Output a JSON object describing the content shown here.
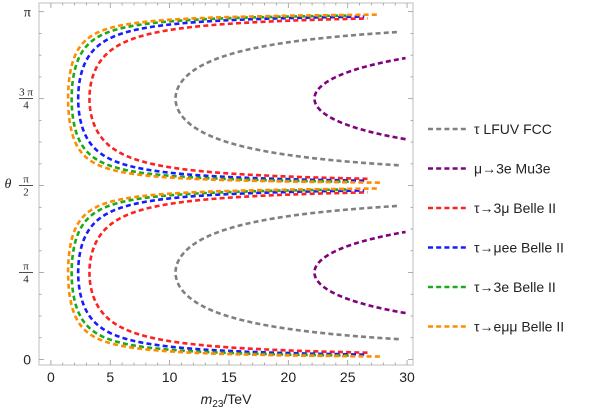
{
  "chart_data": {
    "type": "line",
    "xlabel": "m23/TeV",
    "ylabel": "θ",
    "xlim": [
      -1,
      30.5
    ],
    "ylim": [
      -0.05,
      3.22
    ],
    "x_ticks": [
      {
        "value": 0,
        "label": "0"
      },
      {
        "value": 5,
        "label": "5"
      },
      {
        "value": 10,
        "label": "10"
      },
      {
        "value": 15,
        "label": "15"
      },
      {
        "value": 20,
        "label": "20"
      },
      {
        "value": 25,
        "label": "25"
      },
      {
        "value": 30,
        "label": "30"
      }
    ],
    "y_ticks": [
      {
        "value": 0,
        "label": "0"
      },
      {
        "value": 0.7854,
        "numerator": "π",
        "denominator": "4"
      },
      {
        "value": 1.5708,
        "numerator": "π",
        "denominator": "2"
      },
      {
        "value": 2.3562,
        "numerator": "3 π",
        "denominator": "4"
      },
      {
        "value": 3.1416,
        "label": "π"
      }
    ],
    "grid": false,
    "legend_position": "right",
    "series": [
      {
        "name": "τ LFUV FCC",
        "color": "#808080",
        "m_min": 10.5,
        "x_max": 30,
        "values": []
      },
      {
        "name": "μ→3e Mu3e",
        "color": "#800080",
        "m_min": 22.2,
        "x_max": 30,
        "values": []
      },
      {
        "name": "τ→3μ Belle II",
        "color": "#ff2020",
        "m_min": 3.25,
        "x_max": 30,
        "values": []
      },
      {
        "name": "τ→μee Belle II",
        "color": "#1a1aff",
        "m_min": 2.3,
        "x_max": 30,
        "values": []
      },
      {
        "name": "τ→3e Belle II",
        "color": "#1aaa1a",
        "m_min": 1.75,
        "x_max": 30,
        "values": []
      },
      {
        "name": "τ→eμμ Belle II",
        "color": "#ff8c00",
        "m_min": 1.45,
        "x_max": 30,
        "values": []
      }
    ]
  }
}
